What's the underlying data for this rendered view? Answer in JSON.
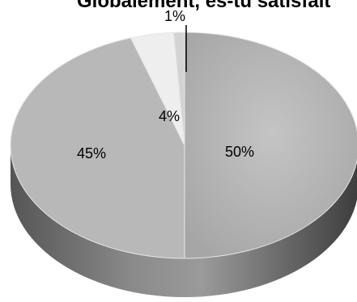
{
  "chart_data": {
    "type": "pie",
    "title": "Globalement, es-tu satisfait",
    "values": [
      50,
      45,
      4,
      1
    ],
    "data_labels": [
      "50%",
      "45%",
      "4%",
      "1%"
    ],
    "style": "3d",
    "colors": [
      "#a9a9a9",
      "#b8b8b8",
      "#eeeeee",
      "#d3d3d3"
    ]
  }
}
